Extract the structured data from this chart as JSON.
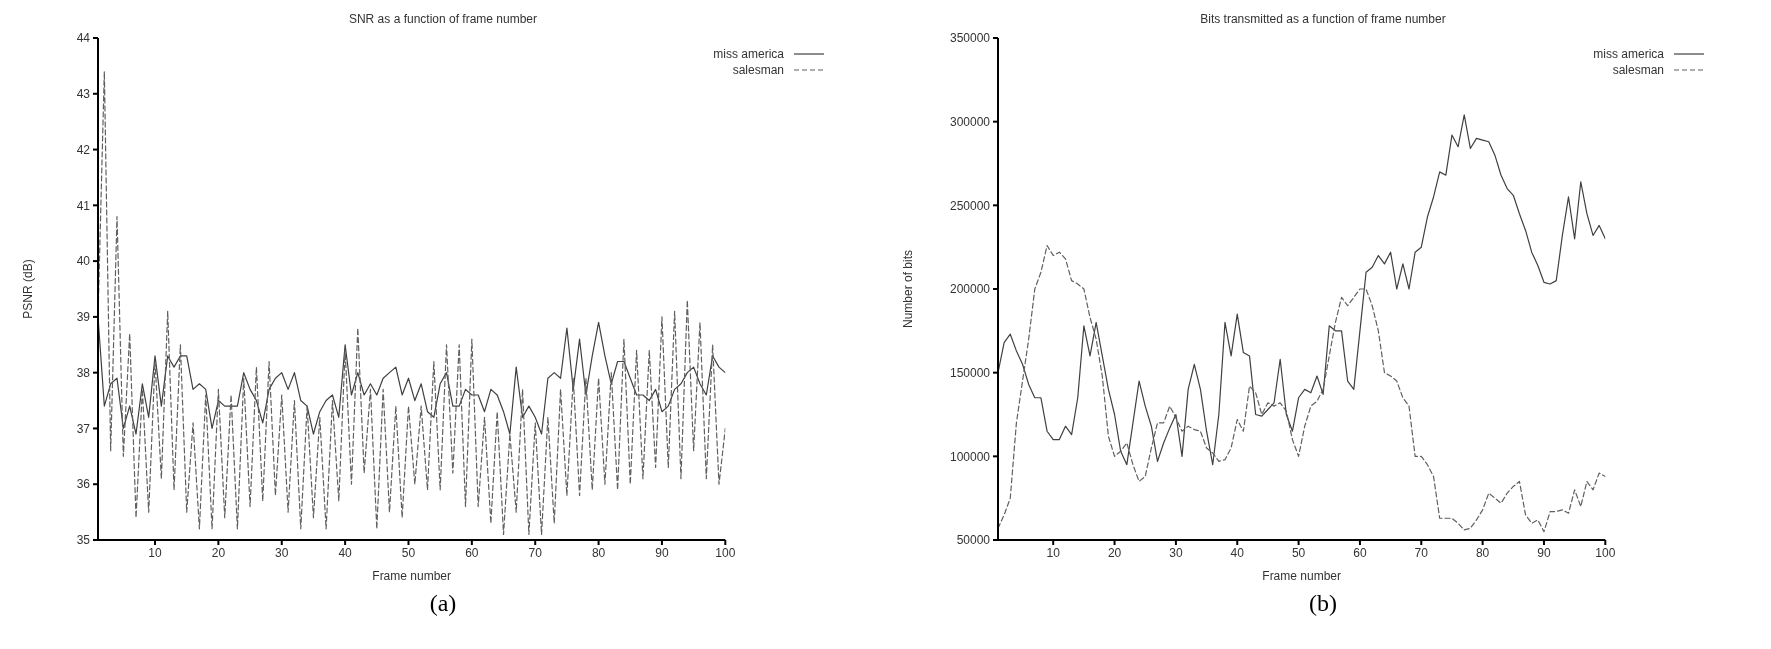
{
  "chart_data": [
    {
      "type": "line",
      "title": "SNR as a function of frame number",
      "xlabel": "Frame number",
      "ylabel": "PSNR (dB)",
      "annotations": [
        "(a)"
      ],
      "x": [
        1,
        2,
        3,
        4,
        5,
        6,
        7,
        8,
        9,
        10,
        11,
        12,
        13,
        14,
        15,
        16,
        17,
        18,
        19,
        20,
        21,
        22,
        23,
        24,
        25,
        26,
        27,
        28,
        29,
        30,
        31,
        32,
        33,
        34,
        35,
        36,
        37,
        38,
        39,
        40,
        41,
        42,
        43,
        44,
        45,
        46,
        47,
        48,
        49,
        50,
        51,
        52,
        53,
        54,
        55,
        56,
        57,
        58,
        59,
        60,
        61,
        62,
        63,
        64,
        65,
        66,
        67,
        68,
        69,
        70,
        71,
        72,
        73,
        74,
        75,
        76,
        77,
        78,
        79,
        80,
        81,
        82,
        83,
        84,
        85,
        86,
        87,
        88,
        89,
        90,
        91,
        92,
        93,
        94,
        95,
        96,
        97,
        98,
        99,
        100
      ],
      "series": [
        {
          "name": "miss america",
          "color": "#404040",
          "line_style": "solid",
          "values": [
            39.0,
            37.4,
            37.8,
            37.9,
            37.0,
            37.4,
            36.9,
            37.8,
            37.2,
            38.3,
            37.4,
            38.3,
            38.1,
            38.3,
            38.3,
            37.7,
            37.8,
            37.7,
            37.0,
            37.5,
            37.4,
            37.4,
            37.4,
            38.0,
            37.7,
            37.5,
            37.1,
            37.7,
            37.9,
            38.0,
            37.7,
            38.0,
            37.5,
            37.4,
            36.9,
            37.3,
            37.5,
            37.6,
            37.2,
            38.5,
            37.6,
            38.0,
            37.6,
            37.8,
            37.6,
            37.9,
            38.0,
            38.1,
            37.6,
            37.9,
            37.5,
            37.8,
            37.3,
            37.2,
            37.8,
            38.0,
            37.4,
            37.4,
            37.7,
            37.6,
            37.6,
            37.3,
            37.7,
            37.6,
            37.3,
            36.9,
            38.1,
            37.2,
            37.4,
            37.2,
            36.9,
            37.9,
            38.0,
            37.9,
            38.8,
            37.7,
            38.6,
            37.6,
            38.3,
            38.9,
            38.3,
            37.8,
            38.2,
            38.2,
            37.9,
            37.6,
            37.6,
            37.5,
            37.7,
            37.3,
            37.4,
            37.7,
            37.8,
            38.0,
            38.1,
            37.8,
            37.6,
            38.3,
            38.1,
            38.0
          ]
        },
        {
          "name": "salesman",
          "color": "#606060",
          "line_style": "dashed",
          "values": [
            39.0,
            43.4,
            36.6,
            40.8,
            36.5,
            38.7,
            35.4,
            37.7,
            35.5,
            38.2,
            36.1,
            39.1,
            35.9,
            38.5,
            35.5,
            37.1,
            35.2,
            37.6,
            35.2,
            37.7,
            35.4,
            37.6,
            35.2,
            37.9,
            35.6,
            38.1,
            35.7,
            38.2,
            35.8,
            37.6,
            35.5,
            37.5,
            35.2,
            37.4,
            35.4,
            37.2,
            35.2,
            37.5,
            35.7,
            38.4,
            36.0,
            38.8,
            36.2,
            37.7,
            35.2,
            37.7,
            35.5,
            37.4,
            35.4,
            37.4,
            36.0,
            37.4,
            35.9,
            38.2,
            35.9,
            38.5,
            36.2,
            38.5,
            35.6,
            38.6,
            35.6,
            37.2,
            35.3,
            37.3,
            35.1,
            36.9,
            35.5,
            37.7,
            35.1,
            37.1,
            35.1,
            37.2,
            35.3,
            37.7,
            35.8,
            37.9,
            35.8,
            37.9,
            35.9,
            37.9,
            36.0,
            38.0,
            35.9,
            38.6,
            36.0,
            38.4,
            36.1,
            38.4,
            36.3,
            39.0,
            36.3,
            39.1,
            36.1,
            39.3,
            36.6,
            38.9,
            36.1,
            38.5,
            36.0,
            37.0
          ]
        }
      ],
      "xlim": [
        1,
        100
      ],
      "xticks": [
        10,
        20,
        30,
        40,
        50,
        60,
        70,
        80,
        90,
        100
      ],
      "ylim": [
        35,
        44
      ],
      "yticks": [
        35,
        36,
        37,
        38,
        39,
        40,
        41,
        42,
        43,
        44
      ],
      "legend": "top right",
      "grid": false
    },
    {
      "type": "line",
      "title": "Bits transmitted as a function of frame number",
      "xlabel": "Frame number",
      "ylabel": "Number of bits",
      "annotations": [
        "(b)"
      ],
      "x": [
        1,
        2,
        3,
        4,
        5,
        6,
        7,
        8,
        9,
        10,
        11,
        12,
        13,
        14,
        15,
        16,
        17,
        18,
        19,
        20,
        21,
        22,
        23,
        24,
        25,
        26,
        27,
        28,
        29,
        30,
        31,
        32,
        33,
        34,
        35,
        36,
        37,
        38,
        39,
        40,
        41,
        42,
        43,
        44,
        45,
        46,
        47,
        48,
        49,
        50,
        51,
        52,
        53,
        54,
        55,
        56,
        57,
        58,
        59,
        60,
        61,
        62,
        63,
        64,
        65,
        66,
        67,
        68,
        69,
        70,
        71,
        72,
        73,
        74,
        75,
        76,
        77,
        78,
        79,
        80,
        81,
        82,
        83,
        84,
        85,
        86,
        87,
        88,
        89,
        90,
        91,
        92,
        93,
        94,
        95,
        96,
        97,
        98,
        99,
        100
      ],
      "series": [
        {
          "name": "miss america",
          "color": "#404040",
          "line_style": "solid",
          "values": [
            150000,
            168000,
            173000,
            163000,
            155000,
            143000,
            135000,
            135000,
            115000,
            110000,
            110000,
            118000,
            113000,
            135000,
            178000,
            160000,
            180000,
            160000,
            140000,
            125000,
            103000,
            95000,
            120000,
            145000,
            130000,
            118000,
            97000,
            108000,
            117000,
            125000,
            100000,
            140000,
            155000,
            140000,
            115000,
            95000,
            125000,
            180000,
            160000,
            185000,
            162000,
            160000,
            125000,
            124000,
            128000,
            132000,
            158000,
            125000,
            115000,
            135000,
            140000,
            138000,
            148000,
            137000,
            178000,
            175000,
            175000,
            145000,
            140000,
            175000,
            210000,
            213000,
            220000,
            215000,
            222000,
            200000,
            215000,
            200000,
            222000,
            225000,
            243000,
            255000,
            270000,
            268000,
            292000,
            285000,
            304000,
            284000,
            290000,
            289000,
            288000,
            280000,
            268000,
            260000,
            256000,
            245000,
            235000,
            222000,
            214000,
            204000,
            203000,
            205000,
            232000,
            255000,
            230000,
            264000,
            245000,
            232000,
            238000,
            230000
          ]
        },
        {
          "name": "salesman",
          "color": "#606060",
          "line_style": "dashed",
          "values": [
            57000,
            65000,
            75000,
            120000,
            145000,
            170000,
            200000,
            210000,
            226000,
            220000,
            222000,
            218000,
            205000,
            203000,
            200000,
            183000,
            170000,
            148000,
            112000,
            100000,
            103000,
            108000,
            95000,
            85000,
            88000,
            105000,
            120000,
            120000,
            130000,
            123000,
            115000,
            118000,
            116000,
            115000,
            105000,
            102000,
            97000,
            98000,
            105000,
            122000,
            115000,
            142000,
            138000,
            125000,
            132000,
            130000,
            132000,
            127000,
            110000,
            100000,
            118000,
            130000,
            133000,
            140000,
            160000,
            180000,
            195000,
            190000,
            195000,
            200000,
            200000,
            190000,
            175000,
            150000,
            148000,
            145000,
            135000,
            130000,
            100000,
            100000,
            95000,
            88000,
            63000,
            63000,
            63000,
            60000,
            56000,
            57000,
            62000,
            68000,
            78000,
            75000,
            72000,
            78000,
            82000,
            85000,
            65000,
            60000,
            62000,
            55000,
            67000,
            67000,
            68000,
            66000,
            80000,
            70000,
            85000,
            80000,
            90000,
            88000
          ]
        }
      ],
      "xlim": [
        1,
        100
      ],
      "xticks": [
        10,
        20,
        30,
        40,
        50,
        60,
        70,
        80,
        90,
        100
      ],
      "ylim": [
        50000,
        350000
      ],
      "yticks": [
        50000,
        100000,
        150000,
        200000,
        250000,
        300000,
        350000
      ],
      "legend": "top right",
      "grid": false
    }
  ]
}
